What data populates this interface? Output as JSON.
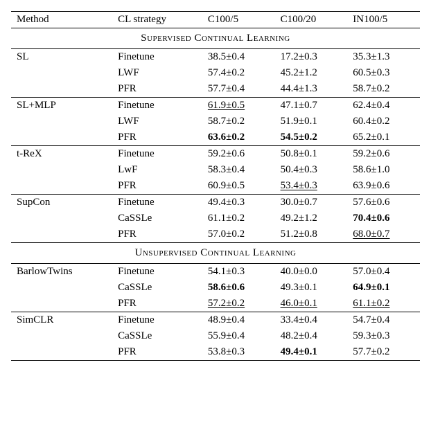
{
  "columns": [
    "Method",
    "CL strategy",
    "C100/5",
    "C100/20",
    "IN100/5"
  ],
  "sections": [
    {
      "header": "Supervised Continual Learning",
      "groups": [
        {
          "method": "SL",
          "rows": [
            {
              "strategy": "Finetune",
              "c": [
                {
                  "v": "38.5±0.4"
                },
                {
                  "v": "17.2±0.3"
                },
                {
                  "v": "35.3±1.3"
                }
              ]
            },
            {
              "strategy": "LWF",
              "c": [
                {
                  "v": "57.4±0.2"
                },
                {
                  "v": "45.2±1.2"
                },
                {
                  "v": "60.5±0.3"
                }
              ]
            },
            {
              "strategy": "PFR",
              "c": [
                {
                  "v": "57.7±0.4"
                },
                {
                  "v": "44.4±1.3"
                },
                {
                  "v": "58.7±0.2"
                }
              ]
            }
          ]
        },
        {
          "method": "SL+MLP",
          "rows": [
            {
              "strategy": "Finetune",
              "c": [
                {
                  "v": "61.9±0.5",
                  "u": true
                },
                {
                  "v": "47.1±0.7"
                },
                {
                  "v": "62.4±0.4"
                }
              ]
            },
            {
              "strategy": "LWF",
              "c": [
                {
                  "v": "58.7±0.2"
                },
                {
                  "v": "51.9±0.1"
                },
                {
                  "v": "60.4±0.2"
                }
              ]
            },
            {
              "strategy": "PFR",
              "c": [
                {
                  "v": "63.6±0.2",
                  "b": true
                },
                {
                  "v": "54.5±0.2",
                  "b": true
                },
                {
                  "v": "65.2±0.1"
                }
              ]
            }
          ]
        },
        {
          "method": "t-ReX",
          "rows": [
            {
              "strategy": "Finetune",
              "c": [
                {
                  "v": "59.2±0.6"
                },
                {
                  "v": "50.8±0.1"
                },
                {
                  "v": "59.2±0.6"
                }
              ]
            },
            {
              "strategy": "LwF",
              "c": [
                {
                  "v": "58.3±0.4"
                },
                {
                  "v": "50.4±0.3"
                },
                {
                  "v": "58.6±1.0"
                }
              ]
            },
            {
              "strategy": "PFR",
              "c": [
                {
                  "v": "60.9±0.5"
                },
                {
                  "v": "53.4±0.3",
                  "u": true
                },
                {
                  "v": "63.9±0.6"
                }
              ]
            }
          ]
        },
        {
          "method": "SupCon",
          "rows": [
            {
              "strategy": "Finetune",
              "c": [
                {
                  "v": "49.4±0.3"
                },
                {
                  "v": "30.0±0.7"
                },
                {
                  "v": "57.6±0.6"
                }
              ]
            },
            {
              "strategy": "CaSSLe",
              "c": [
                {
                  "v": "61.1±0.2"
                },
                {
                  "v": "49.2±1.2"
                },
                {
                  "v": "70.4±0.6",
                  "b": true
                }
              ]
            },
            {
              "strategy": "PFR",
              "c": [
                {
                  "v": "57.0±0.2"
                },
                {
                  "v": "51.2±0.8"
                },
                {
                  "v": "68.0±0.7",
                  "u": true
                }
              ]
            }
          ]
        }
      ]
    },
    {
      "header": "Unsupervised Continual Learning",
      "groups": [
        {
          "method": "BarlowTwins",
          "rows": [
            {
              "strategy": "Finetune",
              "c": [
                {
                  "v": "54.1±0.3"
                },
                {
                  "v": "40.0±0.0"
                },
                {
                  "v": "57.0±0.4"
                }
              ]
            },
            {
              "strategy": "CaSSLe",
              "c": [
                {
                  "v": "58.6±0.6",
                  "b": true
                },
                {
                  "v": "49.3±0.1"
                },
                {
                  "v": "64.9±0.1",
                  "b": true
                }
              ]
            },
            {
              "strategy": "PFR",
              "c": [
                {
                  "v": "57.2±0.2",
                  "u": true
                },
                {
                  "v": "46.0±0.1",
                  "u": true
                },
                {
                  "v": "61.1±0.2",
                  "u": true
                }
              ]
            }
          ]
        },
        {
          "method": "SimCLR",
          "rows": [
            {
              "strategy": "Finetune",
              "c": [
                {
                  "v": "48.9±0.4"
                },
                {
                  "v": "33.4±0.4"
                },
                {
                  "v": "54.7±0.4"
                }
              ]
            },
            {
              "strategy": "CaSSLe",
              "c": [
                {
                  "v": "55.9±0.4"
                },
                {
                  "v": "48.2±0.4"
                },
                {
                  "v": "59.3±0.3"
                }
              ]
            },
            {
              "strategy": "PFR",
              "c": [
                {
                  "v": "53.8±0.3"
                },
                {
                  "v": "49.4±0.1",
                  "b": true
                },
                {
                  "v": "57.7±0.2"
                }
              ]
            }
          ]
        }
      ]
    }
  ]
}
